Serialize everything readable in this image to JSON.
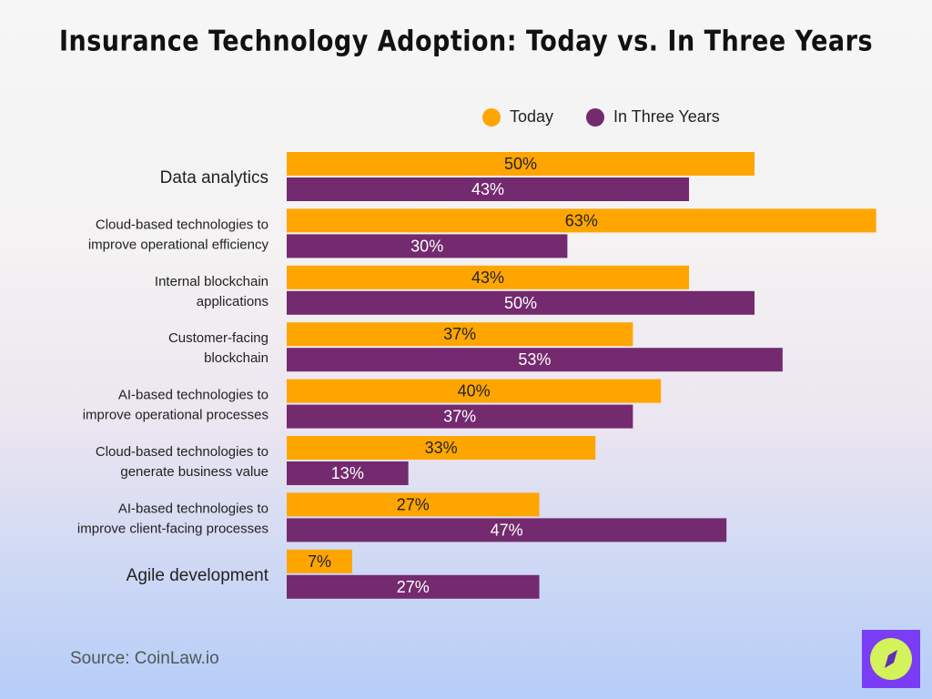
{
  "chart_data": {
    "type": "bar",
    "orientation": "horizontal",
    "title": "Insurance Technology Adoption: Today vs. In Three Years",
    "categories": [
      [
        "Data analytics"
      ],
      [
        "Cloud-based technologies to",
        "improve operational efficiency"
      ],
      [
        "Internal blockchain",
        "applications"
      ],
      [
        "Customer-facing",
        "blockchain"
      ],
      [
        "AI-based technologies to",
        "improve operational processes"
      ],
      [
        "Cloud-based technologies to",
        "generate business value"
      ],
      [
        "AI-based technologies to",
        "improve client-facing processes"
      ],
      [
        "Agile development"
      ]
    ],
    "series": [
      {
        "name": "Today",
        "color": "#FFA500",
        "values": [
          50,
          63,
          43,
          37,
          40,
          33,
          27,
          7
        ]
      },
      {
        "name": "In Three Years",
        "color": "#742A6F",
        "values": [
          43,
          30,
          50,
          53,
          37,
          13,
          47,
          27
        ]
      }
    ],
    "value_suffix": "%",
    "xlim": [
      0,
      63
    ],
    "grid": false,
    "legend": "top-right"
  },
  "source": "Source: CoinLaw.io"
}
